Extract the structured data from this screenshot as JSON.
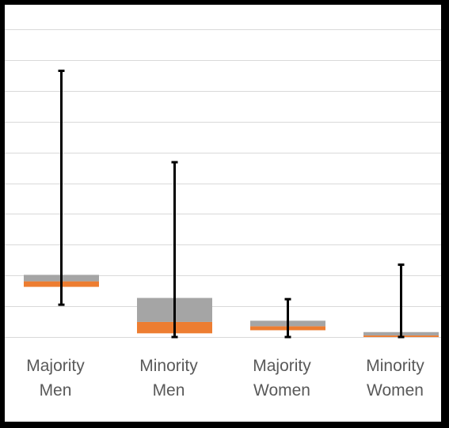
{
  "chart_data": {
    "type": "box",
    "title": "",
    "xlabel": "",
    "ylabel": "",
    "ylim": [
      0,
      10
    ],
    "gridlines": true,
    "legend": "none",
    "colors": {
      "lower_box": "#ED7D31",
      "upper_box": "#A5A5A5",
      "whisker": "#000000",
      "grid": "#D9D9D9",
      "label": "#595959"
    },
    "categories": [
      {
        "line1": "Majority",
        "line2": "Men"
      },
      {
        "line1": "Minority",
        "line2": "Men"
      },
      {
        "line1": "Majority",
        "line2": "Women"
      },
      {
        "line1": "Minority",
        "line2": "Women"
      }
    ],
    "series": [
      {
        "min": 1.05,
        "q1": 1.63,
        "median": 1.81,
        "q3": 2.02,
        "max": 8.65
      },
      {
        "min": 0.0,
        "q1": 0.12,
        "median": 0.49,
        "q3": 1.27,
        "max": 5.68
      },
      {
        "min": 0.0,
        "q1": 0.22,
        "median": 0.35,
        "q3": 0.53,
        "max": 1.23
      },
      {
        "min": 0.0,
        "q1": 0.0,
        "median": 0.05,
        "q3": 0.16,
        "max": 2.35
      }
    ]
  }
}
